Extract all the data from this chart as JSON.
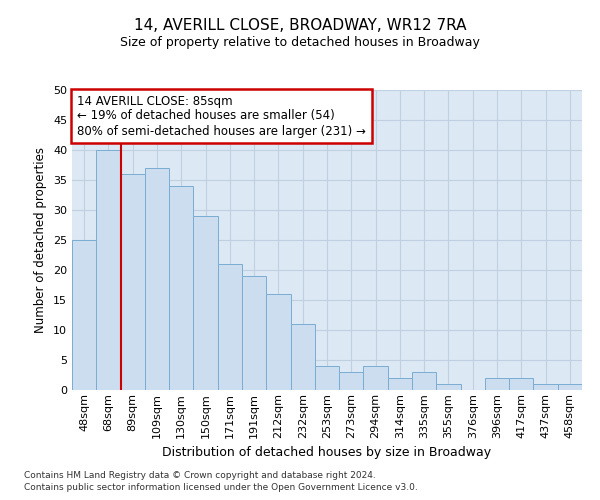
{
  "title": "14, AVERILL CLOSE, BROADWAY, WR12 7RA",
  "subtitle": "Size of property relative to detached houses in Broadway",
  "xlabel": "Distribution of detached houses by size in Broadway",
  "ylabel": "Number of detached properties",
  "bar_color": "#ccddf0",
  "bar_edge_color": "#7aadd4",
  "categories": [
    "48sqm",
    "68sqm",
    "89sqm",
    "109sqm",
    "130sqm",
    "150sqm",
    "171sqm",
    "191sqm",
    "212sqm",
    "232sqm",
    "253sqm",
    "273sqm",
    "294sqm",
    "314sqm",
    "335sqm",
    "355sqm",
    "376sqm",
    "396sqm",
    "417sqm",
    "437sqm",
    "458sqm"
  ],
  "values": [
    25,
    40,
    36,
    37,
    34,
    29,
    21,
    19,
    16,
    11,
    4,
    3,
    4,
    2,
    3,
    1,
    0,
    2,
    2,
    1,
    1
  ],
  "ylim": [
    0,
    50
  ],
  "yticks": [
    0,
    5,
    10,
    15,
    20,
    25,
    30,
    35,
    40,
    45,
    50
  ],
  "annotation_text": "14 AVERILL CLOSE: 85sqm\n← 19% of detached houses are smaller (54)\n80% of semi-detached houses are larger (231) →",
  "annotation_box_color": "#ffffff",
  "annotation_box_edge_color": "#cc0000",
  "vline_color": "#cc0000",
  "footer_line1": "Contains HM Land Registry data © Crown copyright and database right 2024.",
  "footer_line2": "Contains public sector information licensed under the Open Government Licence v3.0.",
  "grid_color": "#c0d0e0",
  "axes_background": "#dce8f4",
  "title_fontsize": 11,
  "subtitle_fontsize": 9,
  "vline_x_index": 2
}
